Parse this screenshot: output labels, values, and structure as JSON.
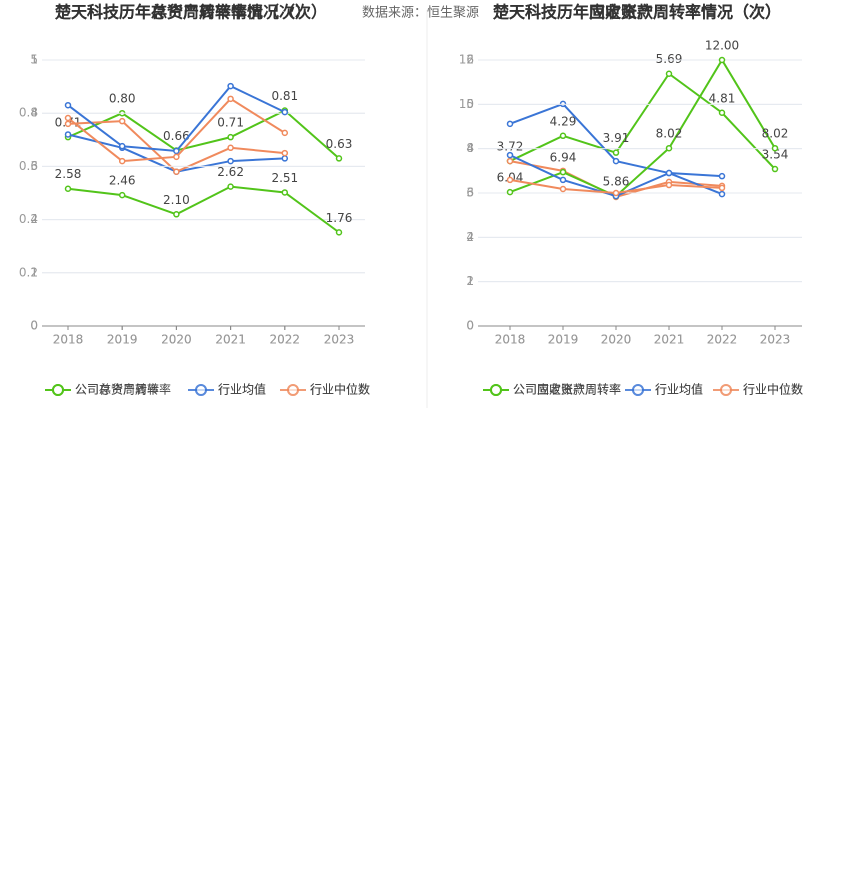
{
  "source": "数据来源：恒生聚源",
  "chart_data": [
    {
      "type": "line",
      "title": "楚天科技历年总资产周转率情况（次）",
      "categories": [
        "2018",
        "2019",
        "2020",
        "2021",
        "2022",
        "2023"
      ],
      "ylim": [
        0,
        1
      ],
      "yticks": [
        0,
        0.2,
        0.4,
        0.6,
        0.8,
        1
      ],
      "series": [
        {
          "name": "公司总资产周转率",
          "color": "#52c41a",
          "values": [
            0.71,
            0.8,
            0.66,
            0.71,
            0.81,
            0.63
          ],
          "value_labels": [
            "0.71",
            "0.80",
            "0.66",
            "0.71",
            "0.81",
            "0.63"
          ]
        },
        {
          "name": "行业均值",
          "color": "#3a75d6",
          "values": [
            0.72,
            0.67,
            0.58,
            0.62,
            0.63,
            null
          ]
        },
        {
          "name": "行业中位数",
          "color": "#f08a5d",
          "values": [
            0.76,
            0.77,
            0.58,
            0.67,
            0.65,
            null
          ]
        }
      ]
    },
    {
      "type": "line",
      "title": "楚天科技历年存货周转率情况（次）",
      "categories": [
        "2018",
        "2019",
        "2020",
        "2021",
        "2022",
        "2023"
      ],
      "ylim": [
        0,
        5
      ],
      "yticks": [
        0,
        1,
        2,
        3,
        4,
        5
      ],
      "series": [
        {
          "name": "公司存货周转率",
          "color": "#52c41a",
          "values": [
            2.58,
            2.46,
            2.1,
            2.62,
            2.51,
            1.76
          ],
          "value_labels": [
            "2.58",
            "2.46",
            "2.10",
            "2.62",
            "2.51",
            "1.76"
          ]
        },
        {
          "name": "行业均值",
          "color": "#3a75d6",
          "values": [
            4.15,
            3.38,
            3.29,
            4.51,
            4.02,
            null
          ]
        },
        {
          "name": "行业中位数",
          "color": "#f08a5d",
          "values": [
            3.91,
            3.1,
            3.18,
            4.27,
            3.63,
            null
          ]
        }
      ]
    },
    {
      "type": "line",
      "title": "楚天科技历年固定资产周转率情况（次）",
      "categories": [
        "2018",
        "2019",
        "2020",
        "2021",
        "2022",
        "2023"
      ],
      "ylim": [
        0,
        6
      ],
      "yticks": [
        0,
        1,
        2,
        3,
        4,
        5,
        6
      ],
      "series": [
        {
          "name": "公司固定资产周转率",
          "color": "#52c41a",
          "values": [
            3.72,
            4.29,
            3.91,
            5.69,
            4.81,
            3.54
          ],
          "value_labels": [
            "3.72",
            "4.29",
            "3.91",
            "5.69",
            "4.81",
            "3.54"
          ]
        },
        {
          "name": "行业均值",
          "color": "#3a75d6",
          "values": [
            4.56,
            5.01,
            3.72,
            3.45,
            3.38,
            null
          ]
        },
        {
          "name": "行业中位数",
          "color": "#f08a5d",
          "values": [
            3.72,
            3.5,
            2.91,
            3.25,
            3.16,
            null
          ]
        }
      ]
    },
    {
      "type": "line",
      "title": "楚天科技历年应收账款周转率情况（次）",
      "categories": [
        "2018",
        "2019",
        "2020",
        "2021",
        "2022",
        "2023"
      ],
      "ylim": [
        0,
        12
      ],
      "yticks": [
        0,
        2,
        4,
        6,
        8,
        10,
        12
      ],
      "series": [
        {
          "name": "公司应收账款周转率",
          "color": "#52c41a",
          "values": [
            6.04,
            6.94,
            5.86,
            8.02,
            12.0,
            8.02
          ],
          "value_labels": [
            "6.04",
            "6.94",
            "5.86",
            "8.02",
            "12.00",
            "8.02"
          ]
        },
        {
          "name": "行业均值",
          "color": "#3a75d6",
          "values": [
            7.71,
            6.59,
            5.86,
            6.9,
            5.95,
            null
          ]
        },
        {
          "name": "行业中位数",
          "color": "#f08a5d",
          "values": [
            6.59,
            6.18,
            6.0,
            6.36,
            6.23,
            null
          ]
        }
      ]
    }
  ]
}
